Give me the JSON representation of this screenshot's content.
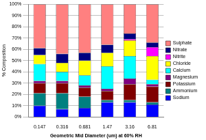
{
  "chart_data": {
    "type": "bar",
    "stacked": true,
    "x_label": "Geometric Mid Diameter (um) at 60% RH",
    "categories": [
      "0.147",
      "0.316",
      "0.681",
      "1.47",
      "3.16",
      "6.81"
    ],
    "series": [
      {
        "name": "Sodium",
        "color": "#0000ff",
        "values": [
          10,
          7,
          8,
          13,
          13,
          11
        ]
      },
      {
        "name": "Ammonium",
        "color": "#008080",
        "values": [
          11,
          14,
          10,
          2,
          2,
          2
        ]
      },
      {
        "name": "Potassium",
        "color": "#800000",
        "values": [
          9,
          9,
          8,
          8,
          14,
          14
        ]
      },
      {
        "name": "Magnesium",
        "color": "#800080",
        "values": [
          2,
          2,
          2,
          2,
          5,
          2
        ]
      },
      {
        "name": "Calcium",
        "color": "#00ffff",
        "values": [
          15,
          8,
          9,
          20,
          20,
          4
        ]
      },
      {
        "name": "Chloride",
        "color": "#ffff00",
        "values": [
          8,
          8,
          13,
          12,
          14,
          21
        ]
      },
      {
        "name": "Nitrite",
        "color": "#ff00ff",
        "values": [
          0,
          0,
          0,
          0,
          1,
          8
        ]
      },
      {
        "name": "Nitrate",
        "color": "#000080",
        "values": [
          6,
          8,
          7,
          7,
          5,
          4
        ]
      },
      {
        "name": "Sulphate",
        "color": "#ff8080",
        "values": [
          39,
          44,
          43,
          36,
          26,
          34
        ]
      }
    ],
    "ylim": [
      0,
      100
    ],
    "yticks": [
      {
        "value": 0,
        "label": "0%"
      },
      {
        "value": 10,
        "label": "10%"
      },
      {
        "value": 20,
        "label": "20%"
      },
      {
        "value": 30,
        "label": "30%"
      },
      {
        "value": 40,
        "label": "40%"
      },
      {
        "value": 50,
        "label": "50%"
      },
      {
        "value": 60,
        "label": "60%"
      },
      {
        "value": 70,
        "label": "70%"
      },
      {
        "value": 80,
        "label": "80%"
      },
      {
        "value": 90,
        "label": "90%"
      },
      {
        "value": 100,
        "label": "100%"
      }
    ],
    "y_label": "% Composition",
    "grid": true,
    "legend": "right"
  }
}
